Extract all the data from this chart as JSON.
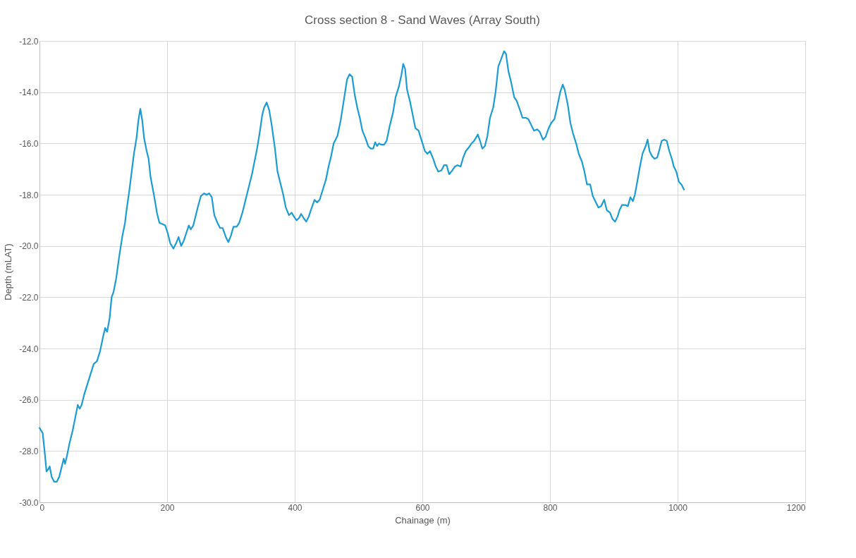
{
  "chart_data": {
    "type": "line",
    "title": "Cross section 8 - Sand Waves (Array South)",
    "xlabel": "Chainage (m)",
    "ylabel": "Depth (mLAT)",
    "xlim": [
      0,
      1200
    ],
    "xticks": [
      0,
      200,
      400,
      600,
      800,
      1000,
      1200
    ],
    "ylim": [
      -30,
      -12
    ],
    "yticks": [
      {
        "value": -30,
        "label": "-30.0"
      },
      {
        "value": -28,
        "label": "-28.0"
      },
      {
        "value": -26,
        "label": "-26.0"
      },
      {
        "value": -24,
        "label": "-24.0"
      },
      {
        "value": -22,
        "label": "-22.0"
      },
      {
        "value": -20,
        "label": "-20.0"
      },
      {
        "value": -18,
        "label": "-18.0"
      },
      {
        "value": -16,
        "label": "-16.0"
      },
      {
        "value": -14,
        "label": "-14.0"
      },
      {
        "value": -12,
        "label": "-12.0"
      }
    ],
    "grid": true,
    "marker": "none",
    "line_style": "solid",
    "series": [
      {
        "color": "#1b9cd6",
        "x": [
          0,
          5,
          8,
          11,
          14,
          16,
          19,
          23,
          27,
          31,
          35,
          38,
          40,
          43,
          47,
          52,
          56,
          60,
          63,
          66,
          70,
          75,
          80,
          85,
          90,
          95,
          100,
          103,
          106,
          110,
          113,
          116,
          120,
          125,
          130,
          134,
          137,
          141,
          144,
          148,
          152,
          155,
          158,
          161,
          164,
          168,
          171,
          174,
          177,
          180,
          184,
          188,
          193,
          197,
          201,
          205,
          210,
          214,
          218,
          222,
          226,
          230,
          234,
          237,
          241,
          245,
          249,
          253,
          258,
          262,
          266,
          270,
          274,
          279,
          283,
          287,
          292,
          296,
          300,
          304,
          309,
          313,
          318,
          323,
          328,
          333,
          337,
          341,
          345,
          349,
          352,
          356,
          360,
          364,
          369,
          373,
          377,
          382,
          386,
          391,
          395,
          400,
          403,
          407,
          410,
          415,
          418,
          422,
          426,
          431,
          435,
          439,
          444,
          449,
          453,
          457,
          461,
          467,
          472,
          477,
          482,
          486,
          490,
          494,
          498,
          502,
          506,
          511,
          515,
          519,
          523,
          526,
          529,
          532,
          536,
          540,
          544,
          549,
          554,
          558,
          563,
          567,
          570,
          573,
          576,
          581,
          585,
          589,
          594,
          599,
          604,
          608,
          612,
          617,
          621,
          625,
          630,
          634,
          638,
          642,
          647,
          651,
          655,
          660,
          664,
          668,
          673,
          677,
          681,
          687,
          691,
          694,
          698,
          702,
          706,
          711,
          715,
          719,
          725,
          728,
          731,
          735,
          739,
          744,
          748,
          753,
          757,
          762,
          766,
          771,
          775,
          780,
          784,
          789,
          793,
          798,
          802,
          807,
          811,
          816,
          820,
          823,
          828,
          832,
          836,
          841,
          845,
          850,
          854,
          858,
          863,
          867,
          872,
          876,
          880,
          885,
          889,
          894,
          898,
          902,
          906,
          909,
          913,
          918,
          922,
          926,
          930,
          933,
          936,
          941,
          945,
          950,
          953,
          956,
          960,
          964,
          968,
          972,
          975,
          979,
          983,
          987,
          991,
          994,
          998,
          1002,
          1006,
          1010
        ],
        "values": [
          -27.1,
          -27.3,
          -28.0,
          -28.8,
          -28.7,
          -28.6,
          -29.0,
          -29.2,
          -29.2,
          -29.0,
          -28.6,
          -28.3,
          -28.5,
          -28.2,
          -27.7,
          -27.2,
          -26.7,
          -26.2,
          -26.35,
          -26.2,
          -25.8,
          -25.4,
          -25.0,
          -24.6,
          -24.5,
          -24.1,
          -23.5,
          -23.2,
          -23.35,
          -22.8,
          -22.0,
          -21.8,
          -21.3,
          -20.4,
          -19.6,
          -19.1,
          -18.5,
          -17.8,
          -17.2,
          -16.4,
          -15.8,
          -15.1,
          -14.65,
          -15.1,
          -15.8,
          -16.3,
          -16.6,
          -17.3,
          -17.7,
          -18.1,
          -18.7,
          -19.1,
          -19.15,
          -19.2,
          -19.5,
          -19.9,
          -20.1,
          -19.9,
          -19.65,
          -20.0,
          -19.8,
          -19.5,
          -19.2,
          -19.35,
          -19.2,
          -18.8,
          -18.4,
          -18.05,
          -17.95,
          -18.0,
          -17.95,
          -18.1,
          -18.8,
          -19.1,
          -19.3,
          -19.3,
          -19.65,
          -19.85,
          -19.6,
          -19.25,
          -19.25,
          -19.1,
          -18.7,
          -18.2,
          -17.7,
          -17.2,
          -16.7,
          -16.2,
          -15.6,
          -14.9,
          -14.6,
          -14.4,
          -14.7,
          -15.3,
          -16.2,
          -17.1,
          -17.5,
          -18.0,
          -18.5,
          -18.8,
          -18.7,
          -18.9,
          -19.0,
          -18.9,
          -18.75,
          -18.95,
          -19.05,
          -18.85,
          -18.55,
          -18.2,
          -18.3,
          -18.2,
          -17.8,
          -17.4,
          -16.9,
          -16.5,
          -16.0,
          -15.7,
          -15.1,
          -14.3,
          -13.5,
          -13.3,
          -13.4,
          -14.1,
          -14.6,
          -15.0,
          -15.5,
          -15.8,
          -16.1,
          -16.2,
          -16.2,
          -15.95,
          -16.1,
          -16.0,
          -16.05,
          -16.05,
          -15.9,
          -15.3,
          -14.8,
          -14.2,
          -13.8,
          -13.35,
          -12.9,
          -13.1,
          -13.9,
          -14.4,
          -14.9,
          -15.4,
          -15.5,
          -15.9,
          -16.3,
          -16.4,
          -16.3,
          -16.6,
          -16.9,
          -17.1,
          -17.05,
          -16.85,
          -16.85,
          -17.2,
          -17.05,
          -16.9,
          -16.85,
          -16.9,
          -16.55,
          -16.3,
          -16.15,
          -16.0,
          -15.9,
          -15.65,
          -15.95,
          -16.2,
          -16.1,
          -15.7,
          -15.0,
          -14.6,
          -13.95,
          -13.0,
          -12.6,
          -12.4,
          -12.5,
          -13.2,
          -13.6,
          -14.2,
          -14.35,
          -14.7,
          -15.0,
          -15.0,
          -15.05,
          -15.3,
          -15.5,
          -15.45,
          -15.55,
          -15.85,
          -15.75,
          -15.4,
          -15.2,
          -15.05,
          -14.6,
          -14.0,
          -13.7,
          -13.9,
          -14.5,
          -15.2,
          -15.6,
          -16.0,
          -16.4,
          -16.7,
          -17.1,
          -17.6,
          -17.6,
          -18.05,
          -18.3,
          -18.5,
          -18.45,
          -18.2,
          -18.6,
          -18.7,
          -18.95,
          -19.05,
          -18.85,
          -18.6,
          -18.4,
          -18.4,
          -18.45,
          -18.1,
          -18.25,
          -18.0,
          -17.6,
          -16.9,
          -16.4,
          -16.1,
          -15.85,
          -16.3,
          -16.5,
          -16.6,
          -16.55,
          -16.2,
          -15.9,
          -15.85,
          -15.9,
          -16.3,
          -16.6,
          -16.9,
          -17.1,
          -17.5,
          -17.6,
          -17.8
        ]
      }
    ]
  }
}
